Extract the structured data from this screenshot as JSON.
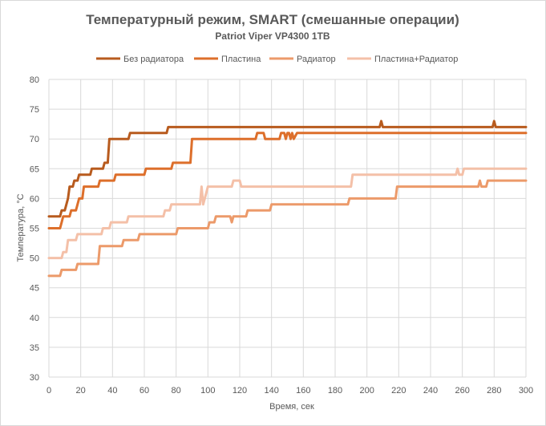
{
  "chart_data": {
    "type": "line",
    "title": "Температурный режим, SMART (смешанные операции)",
    "subtitle": "Patriot Viper VP4300  1TB",
    "xlabel": "Время,  сек",
    "ylabel": "Температура, °С",
    "xlim": [
      0,
      300
    ],
    "ylim": [
      30,
      80
    ],
    "x_ticks": [
      "0",
      "20",
      "40",
      "60",
      "80",
      "100",
      "120",
      "140",
      "160",
      "180",
      "200",
      "220",
      "240",
      "260",
      "280",
      "300"
    ],
    "y_ticks": [
      "30",
      "35",
      "40",
      "45",
      "50",
      "55",
      "60",
      "65",
      "70",
      "75",
      "80"
    ],
    "grid": true,
    "legend_position": "top",
    "series": [
      {
        "name": "Без радиатора",
        "color": "#b85b1e",
        "points": [
          [
            0,
            57
          ],
          [
            7,
            57
          ],
          [
            8,
            58
          ],
          [
            10,
            58
          ],
          [
            11,
            59
          ],
          [
            12,
            60
          ],
          [
            13,
            62
          ],
          [
            15,
            62
          ],
          [
            16,
            63
          ],
          [
            18,
            63
          ],
          [
            19,
            64
          ],
          [
            26,
            64
          ],
          [
            27,
            65
          ],
          [
            34,
            65
          ],
          [
            35,
            66
          ],
          [
            37,
            66
          ],
          [
            38,
            70
          ],
          [
            50,
            70
          ],
          [
            51,
            71
          ],
          [
            74,
            71
          ],
          [
            75,
            72
          ],
          [
            208,
            72
          ],
          [
            209,
            73
          ],
          [
            210,
            72
          ],
          [
            279,
            72
          ],
          [
            280,
            73
          ],
          [
            281,
            72
          ],
          [
            300,
            72
          ]
        ]
      },
      {
        "name": "Пластина",
        "color": "#dd6f2b",
        "points": [
          [
            0,
            55
          ],
          [
            7,
            55
          ],
          [
            8,
            56
          ],
          [
            9,
            57
          ],
          [
            13,
            57
          ],
          [
            14,
            58
          ],
          [
            17,
            58
          ],
          [
            18,
            59
          ],
          [
            19,
            60
          ],
          [
            21,
            60
          ],
          [
            22,
            62
          ],
          [
            31,
            62
          ],
          [
            32,
            63
          ],
          [
            41,
            63
          ],
          [
            42,
            64
          ],
          [
            60,
            64
          ],
          [
            61,
            65
          ],
          [
            77,
            65
          ],
          [
            78,
            66
          ],
          [
            89,
            66
          ],
          [
            90,
            70
          ],
          [
            130,
            70
          ],
          [
            131,
            71
          ],
          [
            135,
            71
          ],
          [
            136,
            70
          ],
          [
            145,
            70
          ],
          [
            146,
            71
          ],
          [
            148,
            71
          ],
          [
            149,
            70
          ],
          [
            150,
            71
          ],
          [
            151,
            71
          ],
          [
            152,
            70
          ],
          [
            153,
            71
          ],
          [
            154,
            70
          ],
          [
            156,
            71
          ],
          [
            300,
            71
          ]
        ]
      },
      {
        "name": "Радиатор",
        "color": "#ec9a6a",
        "points": [
          [
            0,
            47
          ],
          [
            7,
            47
          ],
          [
            8,
            48
          ],
          [
            17,
            48
          ],
          [
            18,
            49
          ],
          [
            31,
            49
          ],
          [
            32,
            52
          ],
          [
            46,
            52
          ],
          [
            47,
            53
          ],
          [
            56,
            53
          ],
          [
            57,
            54
          ],
          [
            80,
            54
          ],
          [
            81,
            55
          ],
          [
            100,
            55
          ],
          [
            101,
            56
          ],
          [
            104,
            56
          ],
          [
            105,
            57
          ],
          [
            114,
            57
          ],
          [
            115,
            56
          ],
          [
            116,
            57
          ],
          [
            124,
            57
          ],
          [
            125,
            58
          ],
          [
            139,
            58
          ],
          [
            140,
            59
          ],
          [
            188,
            59
          ],
          [
            189,
            60
          ],
          [
            218,
            60
          ],
          [
            219,
            62
          ],
          [
            270,
            62
          ],
          [
            271,
            63
          ],
          [
            272,
            62
          ],
          [
            275,
            62
          ],
          [
            276,
            63
          ],
          [
            300,
            63
          ]
        ]
      },
      {
        "name": "Пластина+Радиатор",
        "color": "#f4c0a8",
        "points": [
          [
            0,
            50
          ],
          [
            8,
            50
          ],
          [
            9,
            51
          ],
          [
            11,
            51
          ],
          [
            12,
            53
          ],
          [
            17,
            53
          ],
          [
            18,
            54
          ],
          [
            33,
            54
          ],
          [
            34,
            55
          ],
          [
            38,
            55
          ],
          [
            39,
            56
          ],
          [
            49,
            56
          ],
          [
            50,
            57
          ],
          [
            72,
            57
          ],
          [
            73,
            58
          ],
          [
            76,
            58
          ],
          [
            77,
            59
          ],
          [
            95,
            59
          ],
          [
            96,
            62
          ],
          [
            97,
            59
          ],
          [
            98,
            60
          ],
          [
            99,
            61
          ],
          [
            100,
            62
          ],
          [
            115,
            62
          ],
          [
            116,
            63
          ],
          [
            120,
            63
          ],
          [
            121,
            62
          ],
          [
            190,
            62
          ],
          [
            191,
            64
          ],
          [
            256,
            64
          ],
          [
            257,
            65
          ],
          [
            258,
            64
          ],
          [
            260,
            64
          ],
          [
            261,
            65
          ],
          [
            300,
            65
          ]
        ]
      }
    ]
  }
}
